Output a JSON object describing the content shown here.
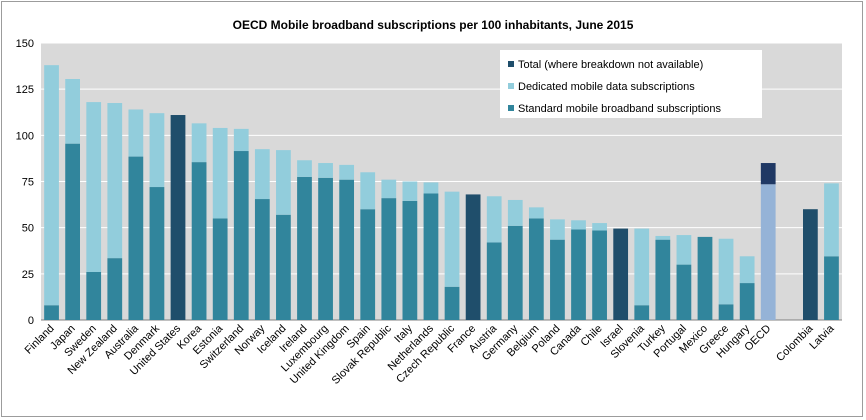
{
  "chart_data": {
    "type": "bar",
    "stacked": true,
    "title": "OECD Mobile broadband subscriptions per 100 inhabitants, June 2015",
    "xlabel": "",
    "ylabel": "",
    "ylim": [
      0,
      150
    ],
    "yticks": [
      0,
      25,
      50,
      75,
      100,
      125,
      150
    ],
    "grid": true,
    "legend_position": "top-right",
    "categories": [
      "Finland",
      "Japan",
      "Sweden",
      "New Zealand",
      "Australia",
      "Denmark",
      "United States",
      "Korea",
      "Estonia",
      "Switzerland",
      "Norway",
      "Iceland",
      "Ireland",
      "Luxembourg",
      "United Kingdom",
      "Spain",
      "Slovak Republic",
      "Italy",
      "Netherlands",
      "Czech Republic",
      "France",
      "Austria",
      "Germany",
      "Belgium",
      "Poland",
      "Canada",
      "Chile",
      "Israel",
      "Slovenia",
      "Turkey",
      "Portugal",
      "Mexico",
      "Greece",
      "Hungary",
      "OECD",
      "",
      "Colombia",
      "Latvia"
    ],
    "series": [
      {
        "name": "Total (where breakdown not available)",
        "color": "#1f4e6b",
        "values": [
          null,
          null,
          null,
          null,
          null,
          null,
          111,
          null,
          null,
          null,
          null,
          null,
          null,
          null,
          null,
          null,
          null,
          null,
          null,
          null,
          68,
          null,
          null,
          null,
          null,
          null,
          null,
          49.5,
          null,
          null,
          null,
          null,
          null,
          null,
          11.5,
          null,
          60,
          null
        ]
      },
      {
        "name": "Dedicated mobile data subscriptions",
        "color": "#92cddc",
        "values": [
          130,
          35,
          92,
          84,
          25.5,
          40,
          null,
          21,
          49,
          12,
          27,
          35,
          9,
          8,
          8,
          20,
          10,
          10.5,
          6,
          51.5,
          null,
          25,
          14,
          6,
          11,
          5,
          4,
          null,
          41.5,
          2,
          16,
          null,
          35.5,
          14.5,
          null,
          null,
          null,
          39.5
        ]
      },
      {
        "name": "Standard mobile broadband subscriptions",
        "color": "#31859c",
        "values": [
          8,
          95.5,
          26,
          33.5,
          88.5,
          72,
          null,
          85.5,
          55,
          91.5,
          65.5,
          57,
          77.5,
          77,
          76,
          60,
          66,
          64.5,
          68.5,
          18,
          null,
          42,
          51,
          55,
          43.5,
          49,
          48.5,
          null,
          8,
          43.5,
          30,
          45,
          8.5,
          20,
          73.5,
          null,
          null,
          34.5
        ]
      }
    ]
  }
}
